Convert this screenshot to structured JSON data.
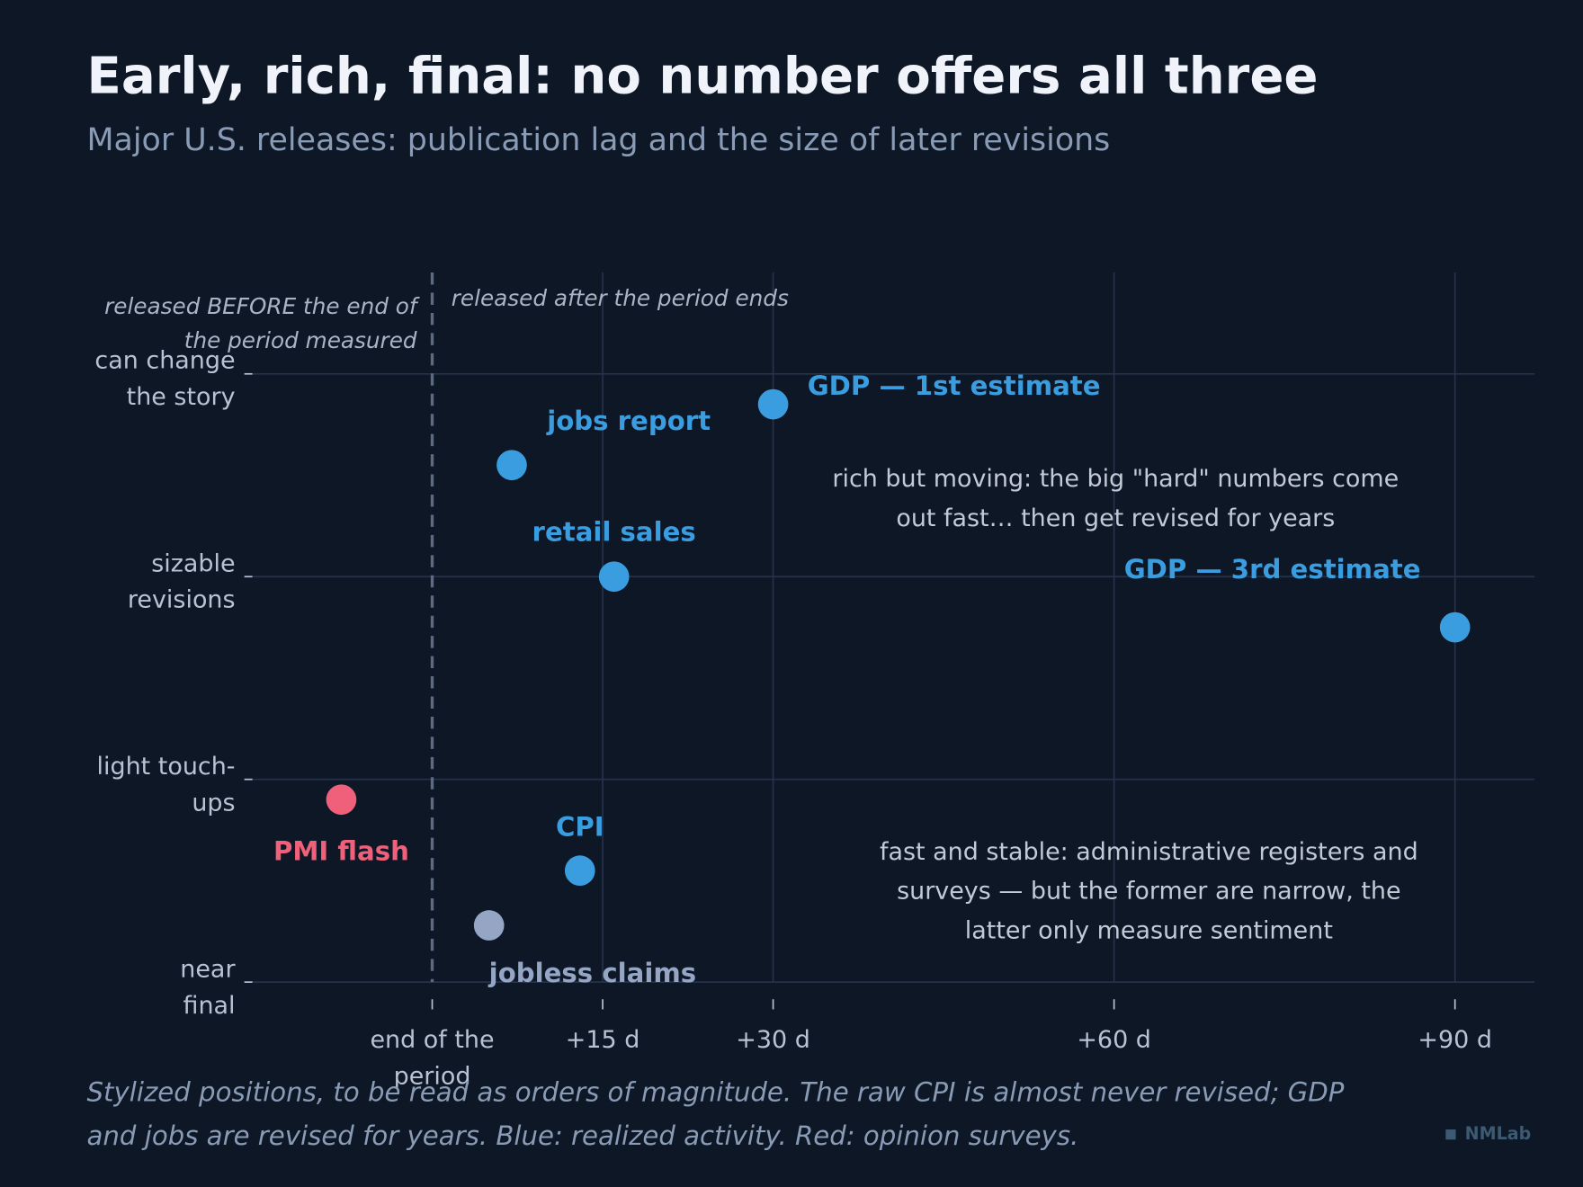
{
  "chart_data": {
    "type": "scatter",
    "title": "Early, rich, final: no number offers all three",
    "subtitle": "Major U.S. releases: publication lag and the size of later revisions",
    "annotations": {
      "before": "released BEFORE the end of the period measured",
      "after": "released after the period ends",
      "rich": "rich but moving: the big \"hard\" numbers come out fast… then get revised for years",
      "stable": "fast and stable: administrative registers and surveys — but the former are narrow, the latter only measure sentiment"
    },
    "footnote": "Stylized positions, to be read as orders of magnitude. The raw CPI is almost never revised; GDP and jobs are revised for years. Blue: realized activity. Red: opinion surveys.",
    "source": "NMLab",
    "xlim": [
      -16,
      97
    ],
    "ylim": [
      0,
      3.5
    ],
    "xticks": [
      {
        "value": 0,
        "label": "end of the period"
      },
      {
        "value": 15,
        "label": "+15 d"
      },
      {
        "value": 30,
        "label": "+30 d"
      },
      {
        "value": 60,
        "label": "+60 d"
      },
      {
        "value": 90,
        "label": "+90 d"
      }
    ],
    "yticks": [
      {
        "value": 0,
        "label": "near final"
      },
      {
        "value": 1,
        "label": "light touch-ups"
      },
      {
        "value": 2,
        "label": "sizable revisions"
      },
      {
        "value": 3,
        "label": "can change the story"
      }
    ],
    "grid": true,
    "points": [
      {
        "name": "GDP — 1st estimate",
        "color": "#3a9de0",
        "x": 30,
        "y": 2.85
      },
      {
        "name": "jobs report",
        "color": "#3a9de0",
        "x": 7,
        "y": 2.55
      },
      {
        "name": "retail sales",
        "color": "#3a9de0",
        "x": 16,
        "y": 2.0
      },
      {
        "name": "GDP — 3rd estimate",
        "color": "#3a9de0",
        "x": 90,
        "y": 1.75
      },
      {
        "name": "PMI flash",
        "color": "#f0607a",
        "x": -8,
        "y": 0.9
      },
      {
        "name": "CPI",
        "color": "#3a9de0",
        "x": 13,
        "y": 0.55
      },
      {
        "name": "jobless claims",
        "color": "#95a6c4",
        "x": 5,
        "y": 0.28
      }
    ]
  }
}
